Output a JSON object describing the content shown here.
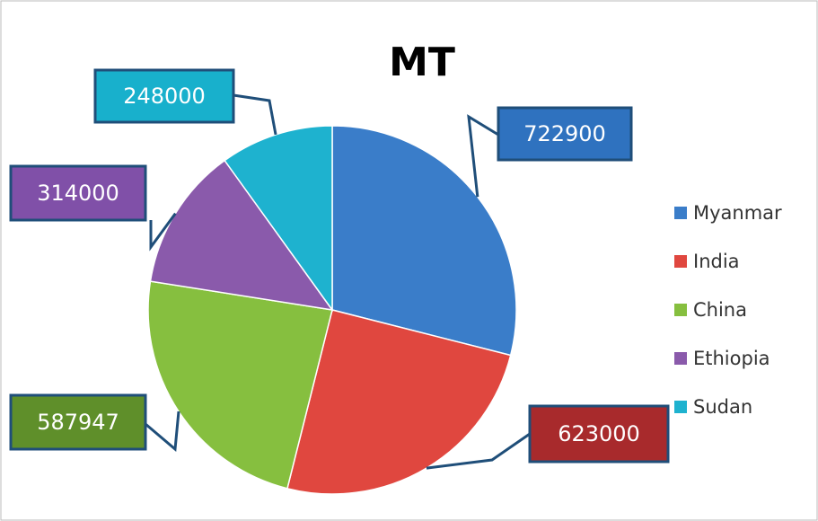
{
  "chart_data": {
    "type": "pie",
    "title": "MT",
    "categories": [
      "Myanmar",
      "India",
      "China",
      "Ethiopia",
      "Sudan"
    ],
    "values": [
      722900,
      623000,
      587947,
      314000,
      248000
    ],
    "colors": [
      "#3a7dc9",
      "#e0473f",
      "#86bf3f",
      "#8a5aab",
      "#1eb2cf"
    ],
    "label_colors": [
      "#2f72bf",
      "#a82a2c",
      "#5f8f2a",
      "#8050a8",
      "#18b0cc"
    ],
    "legend": "right"
  }
}
